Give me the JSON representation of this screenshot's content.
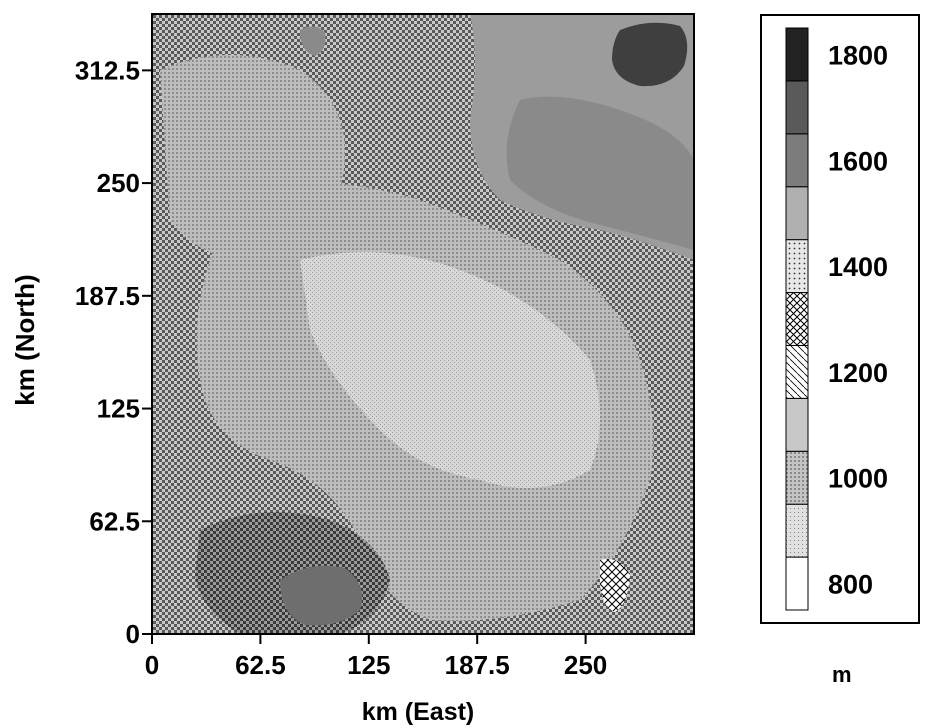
{
  "chart_data": {
    "type": "heatmap",
    "title": "",
    "xlabel": "km (East)",
    "ylabel": "km (North)",
    "xlim": [
      0,
      312.5
    ],
    "ylim": [
      0,
      343.75
    ],
    "x_ticks": [
      "0",
      "62.5",
      "125",
      "187.5",
      "250"
    ],
    "x_tick_values": [
      0,
      62.5,
      125,
      187.5,
      250
    ],
    "y_ticks": [
      "0",
      "62.5",
      "125",
      "187.5",
      "250",
      "312.5"
    ],
    "y_tick_values": [
      0,
      62.5,
      125,
      187.5,
      250,
      312.5
    ],
    "grid": false,
    "colorbar": {
      "unit": "m",
      "labels": [
        "1800",
        "1600",
        "1400",
        "1200",
        "1000",
        "800"
      ],
      "label_values": [
        1800,
        1600,
        1400,
        1200,
        1000,
        800
      ],
      "bands": [
        {
          "range": [
            800,
            900
          ],
          "pattern": "white"
        },
        {
          "range": [
            900,
            1000
          ],
          "pattern": "light-stipple"
        },
        {
          "range": [
            1000,
            1100
          ],
          "pattern": "medium-stipple"
        },
        {
          "range": [
            1100,
            1200
          ],
          "pattern": "light-gray"
        },
        {
          "range": [
            1200,
            1300
          ],
          "pattern": "crosshatch-light"
        },
        {
          "range": [
            1300,
            1400
          ],
          "pattern": "crosshatch"
        },
        {
          "range": [
            1400,
            1500
          ],
          "pattern": "dots"
        },
        {
          "range": [
            1500,
            1600
          ],
          "pattern": "medium-gray"
        },
        {
          "range": [
            1600,
            1700
          ],
          "pattern": "dark-gray"
        },
        {
          "range": [
            1700,
            1800
          ],
          "pattern": "darker-gray"
        },
        {
          "range": [
            1800,
            1900
          ],
          "pattern": "black"
        }
      ]
    }
  }
}
